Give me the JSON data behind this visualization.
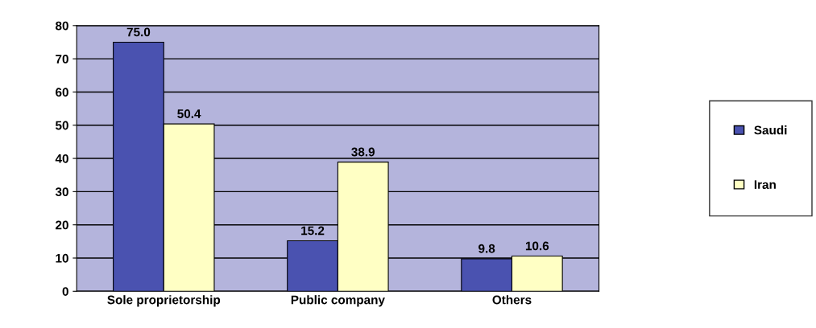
{
  "chart_data": {
    "type": "bar",
    "categories": [
      "Sole proprietorship",
      "Public company",
      "Others"
    ],
    "series": [
      {
        "name": "Saudi",
        "color": "#4a52b0",
        "values": [
          75.0,
          15.2,
          9.8
        ],
        "value_labels": [
          "75.0",
          "15.2",
          "9.8"
        ]
      },
      {
        "name": "Iran",
        "color": "#ffffc4",
        "values": [
          50.4,
          38.9,
          10.6
        ],
        "value_labels": [
          "50.4",
          "38.9",
          "10.6"
        ]
      }
    ],
    "ylim": [
      0,
      80
    ],
    "yticks": [
      0,
      10,
      20,
      30,
      40,
      50,
      60,
      70,
      80
    ],
    "grid": "y",
    "legend": "right"
  }
}
